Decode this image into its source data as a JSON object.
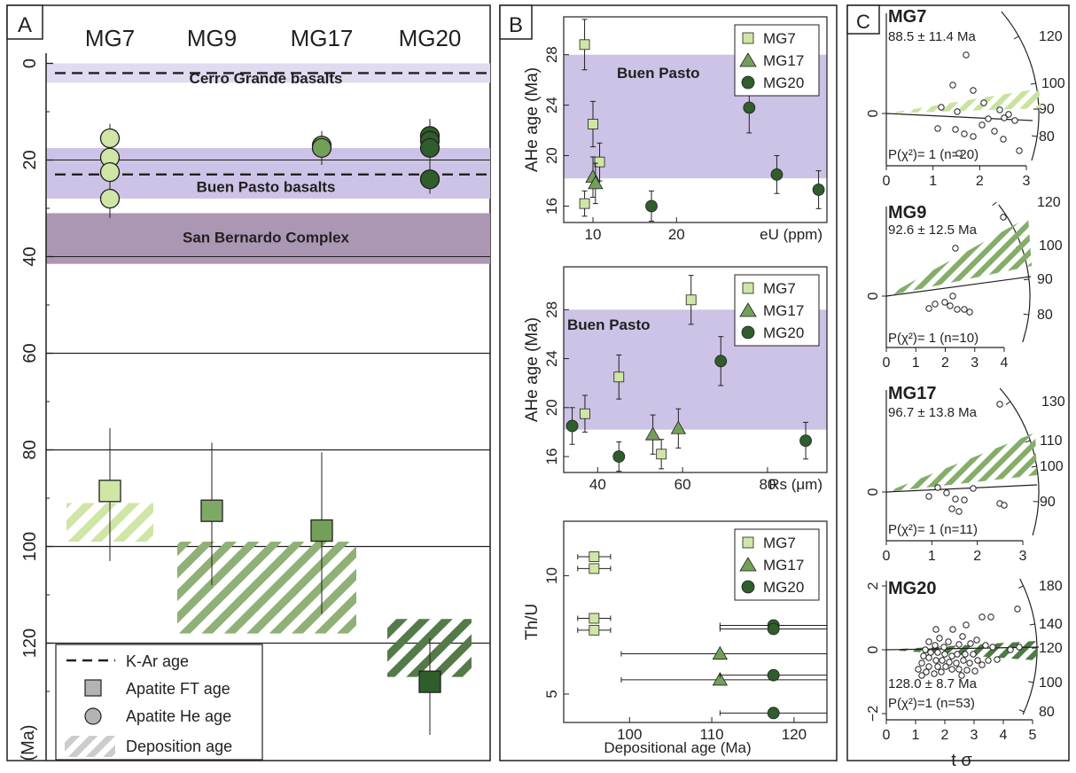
{
  "colors": {
    "mg7": "#cfe6a6",
    "mg9": "#7fa866",
    "mg17": "#73a059",
    "mg20": "#2f5d2c",
    "band_light": "#e1daf0",
    "band_mid": "#cdc3e6",
    "band_dark": "#ab97b4",
    "label_light": "#b8a9d8",
    "label_purple": "#6c5b9e",
    "label_dark": "#6b5580"
  },
  "panels": {
    "a": {
      "letter": "A",
      "columns": [
        "MG7",
        "MG9",
        "MG17",
        "MG20"
      ],
      "y_axis_label": "(Ma)",
      "y_ticks": [
        "0",
        "20",
        "40",
        "60",
        "80",
        "100",
        "120"
      ],
      "bands": [
        {
          "label": "Cerro Grande basalts",
          "from": 0,
          "to": 4
        },
        {
          "label": "Buen Pasto basalts",
          "from": 17.5,
          "to": 28
        },
        {
          "label": "San Bernardo Complex",
          "from": 31,
          "to": 41.5
        }
      ],
      "legend": {
        "kar": "K-Ar age",
        "ft": "Apatite FT age",
        "he": "Apatite He age",
        "dep": "Deposition age"
      }
    },
    "b": {
      "letter": "B",
      "band_label": "Buen Pasto",
      "legend": [
        "MG7",
        "MG17",
        "MG20"
      ],
      "plot1": {
        "ylabel": "AHe age (Ma)",
        "xlabel": "eU (ppm)",
        "y_ticks": [
          "16",
          "20",
          "24",
          "28"
        ],
        "x_ticks": [
          "10",
          "20"
        ]
      },
      "plot2": {
        "ylabel": "AHe age (Ma)",
        "xlabel": "Rs (μm)",
        "y_ticks": [
          "16",
          "20",
          "24",
          "28"
        ],
        "x_ticks": [
          "40",
          "60",
          "80"
        ]
      },
      "plot3": {
        "ylabel": "Th/U",
        "xlabel": "Depositional age (Ma)",
        "y_ticks": [
          "5",
          "10"
        ],
        "x_ticks": [
          "100",
          "110",
          "120"
        ]
      }
    },
    "c": {
      "letter": "C",
      "xlabel": "t σ",
      "radials": [
        {
          "sample": "MG7",
          "age": "88.5 ± 11.4 Ma",
          "stat": "P(χ²)= 1 (n=20)",
          "x_ticks": [
            "0",
            "1",
            "2",
            "3"
          ],
          "arc_ticks": [
            "120",
            "100",
            "90",
            "80"
          ],
          "z_ticks": [
            "0"
          ]
        },
        {
          "sample": "MG9",
          "age": "92.6 ± 12.5 Ma",
          "stat": "P(χ²)= 1 (n=10)",
          "x_ticks": [
            "0",
            "1",
            "2",
            "3",
            "4"
          ],
          "arc_ticks": [
            "120",
            "100",
            "90",
            "80"
          ],
          "z_ticks": [
            "0"
          ]
        },
        {
          "sample": "MG17",
          "age": "96.7 ± 13.8 Ma",
          "stat": "P(χ²)= 1 (n=11)",
          "x_ticks": [
            "0",
            "1",
            "2",
            "3"
          ],
          "arc_ticks": [
            "130",
            "110",
            "100",
            "90"
          ],
          "z_ticks": [
            "0"
          ]
        },
        {
          "sample": "MG20",
          "age": "128.0 ± 8.7 Ma",
          "stat": "P(χ²)=1 (n=53)",
          "x_ticks": [
            "0",
            "1",
            "2",
            "3",
            "4",
            "5"
          ],
          "arc_ticks": [
            "180",
            "140",
            "120",
            "100",
            "80"
          ],
          "z_ticks": [
            "2",
            "0",
            "−2"
          ]
        }
      ]
    }
  },
  "chart_data": [
    {
      "type": "scatter",
      "panel": "A",
      "x_categories": [
        "MG7",
        "MG9",
        "MG17",
        "MG20"
      ],
      "y_axis": "age (Ma)",
      "ylim": [
        0,
        130
      ],
      "y_inverted": true,
      "kar_ages": [
        2,
        23
      ],
      "reference_lines": [
        20,
        40,
        60,
        80,
        100,
        120
      ],
      "apatite_ft": [
        {
          "sample": "MG7",
          "age": 88.5,
          "low": 75.5,
          "high": 103
        },
        {
          "sample": "MG9",
          "age": 92.6,
          "low": 78.5,
          "high": 108
        },
        {
          "sample": "MG17",
          "age": 96.7,
          "low": 80.5,
          "high": 114
        },
        {
          "sample": "MG20",
          "age": 128.0,
          "low": 119,
          "high": 139
        }
      ],
      "apatite_he": [
        {
          "sample": "MG7",
          "ages": [
            15.5,
            19.5,
            22.5,
            28
          ],
          "low": 12.5,
          "high": 32
        },
        {
          "sample": "MG17",
          "ages": [
            17,
            17.5
          ],
          "low": 14,
          "high": 21
        },
        {
          "sample": "MG20",
          "ages": [
            15,
            16,
            17.5,
            24
          ],
          "low": 11.5,
          "high": 27
        }
      ],
      "deposition": [
        {
          "sample": "MG7",
          "from": 91,
          "to": 99
        },
        {
          "sample": "MG9",
          "from": 99,
          "to": 118
        },
        {
          "sample": "MG17",
          "from": 99,
          "to": 118
        },
        {
          "sample": "MG20",
          "from": 115,
          "to": 127
        }
      ]
    },
    {
      "type": "scatter",
      "panel": "B1",
      "xlabel": "eU (ppm)",
      "ylabel": "AHe age (Ma)",
      "xlim": [
        6.5,
        38
      ],
      "ylim": [
        14.7,
        31
      ],
      "band": [
        18.2,
        28
      ],
      "series": [
        {
          "name": "MG7",
          "points": [
            [
              9,
              28.8,
              2
            ],
            [
              9,
              16.2,
              1
            ],
            [
              10,
              22.5,
              1.8
            ],
            [
              10.8,
              19.5,
              1.5
            ]
          ]
        },
        {
          "name": "MG17",
          "points": [
            [
              10,
              18.3,
              1.6
            ],
            [
              10.3,
              17.8,
              1.6
            ]
          ]
        },
        {
          "name": "MG20",
          "points": [
            [
              17,
              16,
              1.2
            ],
            [
              28.7,
              23.8,
              2
            ],
            [
              32,
              18.5,
              1.5
            ],
            [
              37,
              17.3,
              1.5
            ]
          ]
        }
      ]
    },
    {
      "type": "scatter",
      "panel": "B2",
      "xlabel": "Rs (μm)",
      "ylabel": "AHe age (Ma)",
      "xlim": [
        32,
        94
      ],
      "ylim": [
        14.7,
        31.5
      ],
      "band": [
        18.2,
        28
      ],
      "series": [
        {
          "name": "MG7",
          "points": [
            [
              62,
              28.8,
              2
            ],
            [
              37,
              19.5,
              1.5
            ],
            [
              45,
              22.5,
              1.8
            ],
            [
              55,
              16.2,
              1.2
            ]
          ]
        },
        {
          "name": "MG17",
          "points": [
            [
              53,
              17.8,
              1.6
            ],
            [
              59,
              18.3,
              1.6
            ]
          ]
        },
        {
          "name": "MG20",
          "points": [
            [
              34,
              18.5,
              1.5
            ],
            [
              45,
              16,
              1.2
            ],
            [
              69,
              23.8,
              2
            ],
            [
              89,
              17.3,
              1.5
            ]
          ]
        }
      ]
    },
    {
      "type": "scatter",
      "panel": "B3",
      "xlabel": "Depositional age (Ma)",
      "ylabel": "Th/U",
      "xlim": [
        92,
        124
      ],
      "ylim": [
        3.8,
        12.3
      ],
      "series": [
        {
          "name": "MG7",
          "points": [
            [
              95.7,
              10.8,
              93.7,
              97.7
            ],
            [
              95.7,
              10.3,
              93.7,
              97.7
            ],
            [
              95.7,
              8.2,
              93.7,
              97.7
            ],
            [
              95.7,
              7.7,
              93.7,
              97.7
            ]
          ]
        },
        {
          "name": "MG17",
          "points": [
            [
              111,
              6.7,
              99,
              124
            ],
            [
              111,
              5.6,
              99,
              124
            ]
          ]
        },
        {
          "name": "MG20",
          "points": [
            [
              117.5,
              7.9,
              111,
              124
            ],
            [
              117.5,
              7.75,
              111,
              124
            ],
            [
              117.5,
              5.8,
              111,
              124
            ],
            [
              117.5,
              4.2,
              111,
              124
            ]
          ]
        }
      ]
    },
    {
      "type": "scatter",
      "panel": "C",
      "kind": "radial plots",
      "plots": [
        {
          "sample": "MG7",
          "central_age": 88.5,
          "error": 11.4,
          "n": 20,
          "xlim": [
            0,
            3
          ]
        },
        {
          "sample": "MG9",
          "central_age": 92.6,
          "error": 12.5,
          "n": 10,
          "xlim": [
            0,
            4
          ]
        },
        {
          "sample": "MG17",
          "central_age": 96.7,
          "error": 13.8,
          "n": 11,
          "xlim": [
            0,
            3.5
          ]
        },
        {
          "sample": "MG20",
          "central_age": 128.0,
          "error": 8.7,
          "n": 53,
          "xlim": [
            0,
            5
          ]
        }
      ]
    }
  ]
}
